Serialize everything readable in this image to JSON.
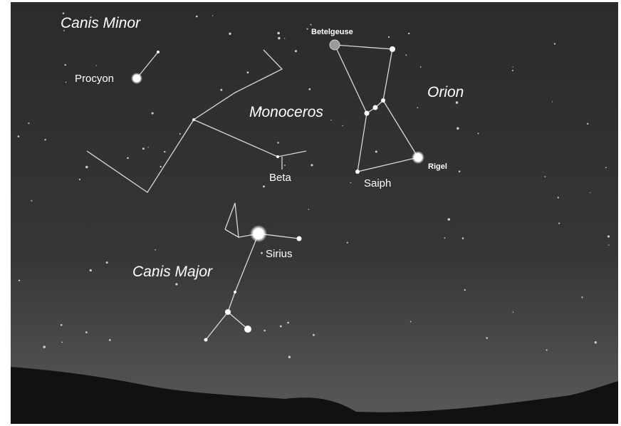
{
  "constellations": [
    "Canis Minor",
    "Monoceros",
    "Orion",
    "Canis Major"
  ],
  "stars": [
    "Procyon",
    "Beta",
    "Betelgeuse",
    "Rigel",
    "Saiph",
    "Sirius"
  ]
}
